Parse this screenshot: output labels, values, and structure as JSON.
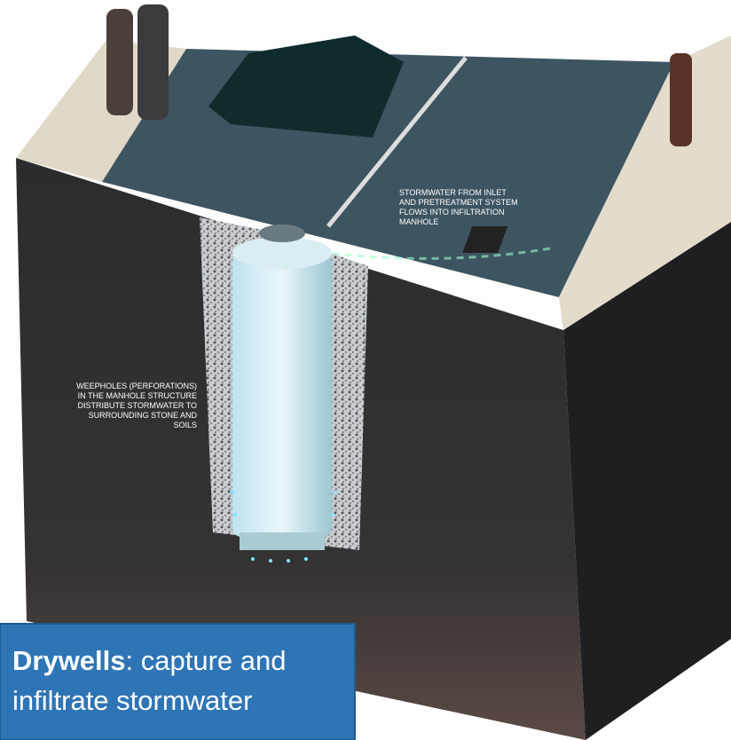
{
  "annotations": [
    {
      "lines": [
        "STORMWATER FROM INLET",
        "AND PRETREATMENT SYSTEM",
        "FLOWS INTO INFILTRATION",
        "MANHOLE"
      ]
    },
    {
      "lines": [
        "WEEPHOLES (PERFORATIONS)",
        "IN THE MANHOLE STRUCTURE",
        "DISTRIBUTE STORMWATER TO",
        "SURROUNDING STONE AND",
        "SOILS"
      ]
    }
  ],
  "caption": {
    "term": "Drywells",
    "rest": ": capture and",
    "line2": "infiltrate stormwater"
  }
}
